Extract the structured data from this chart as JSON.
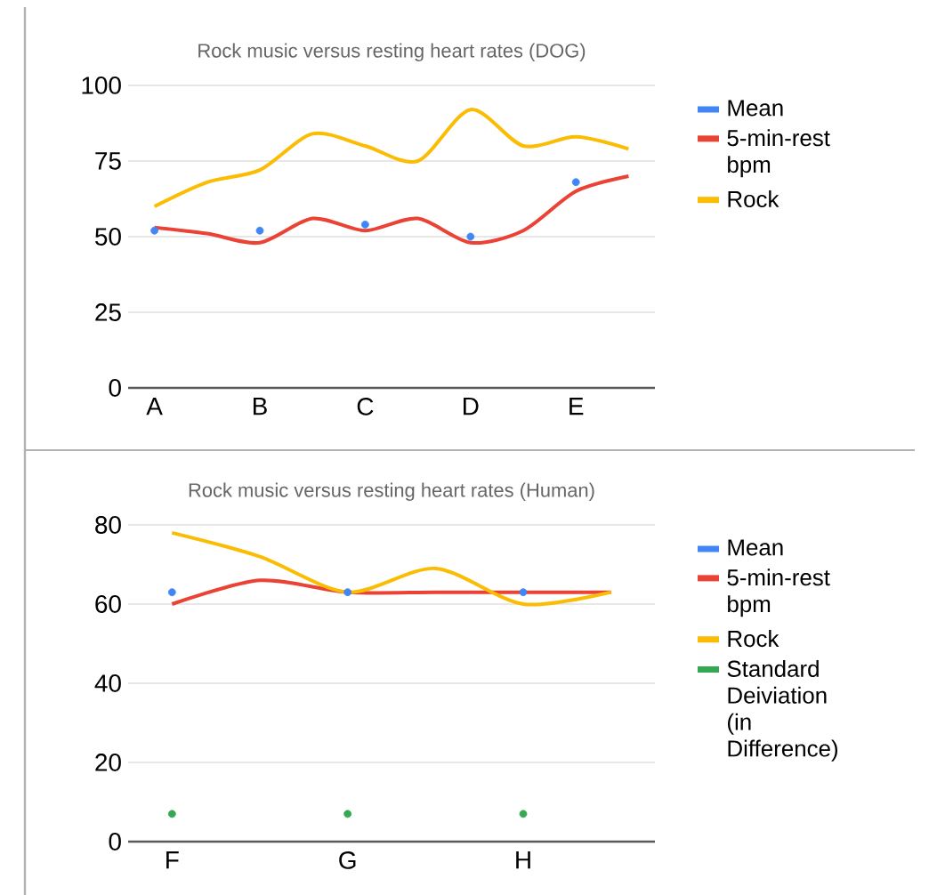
{
  "chart_data": [
    {
      "type": "line",
      "title": "Rock music versus resting heart rates (DOG)",
      "categories": [
        "A",
        null,
        "B",
        null,
        "C",
        null,
        "D",
        null,
        "E",
        null
      ],
      "ylim": [
        0,
        100
      ],
      "yticks": [
        0,
        25,
        50,
        75,
        100
      ],
      "grid": "y",
      "legend": "right",
      "series": [
        {
          "name": "Mean",
          "type": "scatter",
          "marker": "circle",
          "color": "#4285f4",
          "values": [
            52,
            null,
            52,
            null,
            54,
            null,
            50,
            null,
            68,
            null
          ]
        },
        {
          "name": "5-min-rest bpm",
          "type": "line",
          "marker": "none",
          "color": "#ea4335",
          "values": [
            53,
            51,
            48,
            56,
            52,
            56,
            48,
            52,
            65,
            70
          ]
        },
        {
          "name": "Rock",
          "type": "line",
          "marker": "none",
          "color": "#fbbc04",
          "values": [
            60,
            68,
            72,
            84,
            80,
            75,
            92,
            80,
            83,
            79
          ]
        }
      ]
    },
    {
      "type": "line",
      "title": "Rock music versus resting heart rates (Human)",
      "categories": [
        "F",
        null,
        "G",
        null,
        "H",
        null
      ],
      "ylim": [
        0,
        80
      ],
      "yticks": [
        0,
        20,
        40,
        60,
        80
      ],
      "grid": "y",
      "legend": "right",
      "series": [
        {
          "name": "Mean",
          "type": "scatter",
          "marker": "circle",
          "color": "#4285f4",
          "values": [
            63,
            null,
            63,
            null,
            63,
            null
          ]
        },
        {
          "name": "5-min-rest bpm",
          "type": "line",
          "marker": "none",
          "color": "#ea4335",
          "values": [
            60,
            66,
            63,
            63,
            63,
            63
          ]
        },
        {
          "name": "Rock",
          "type": "line",
          "marker": "none",
          "color": "#fbbc04",
          "values": [
            78,
            72,
            63,
            69,
            60,
            63
          ]
        },
        {
          "name": "Standard Deiviation (in Difference)",
          "type": "scatter",
          "marker": "circle",
          "color": "#34a853",
          "values": [
            7,
            null,
            7,
            null,
            7,
            null
          ]
        }
      ]
    }
  ]
}
